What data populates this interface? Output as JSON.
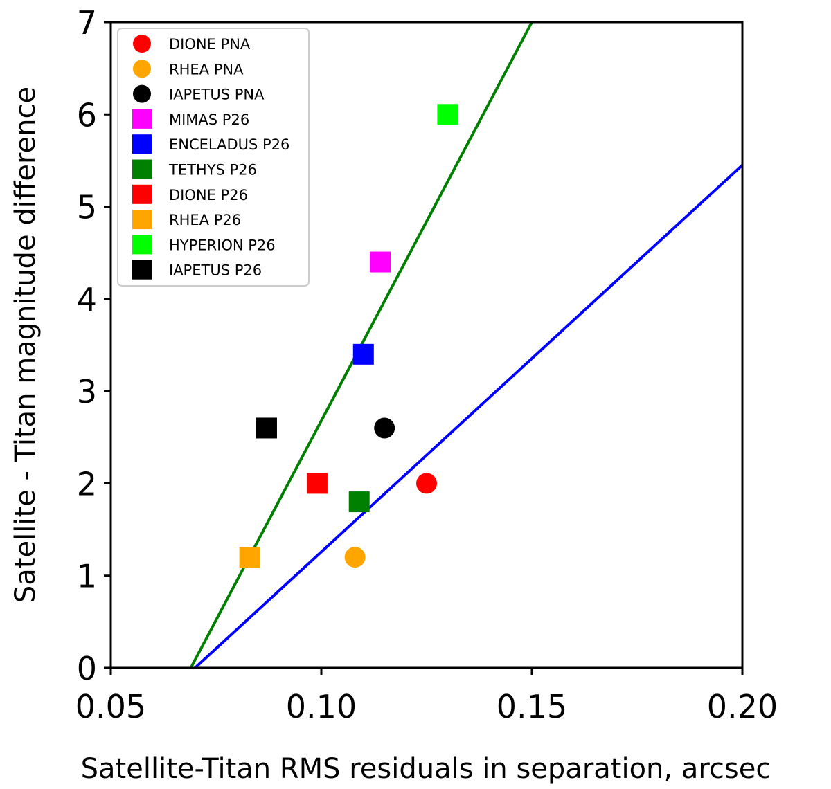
{
  "chart_data": {
    "type": "scatter",
    "xlabel": "Satellite-Titan RMS residuals in separation, arcsec",
    "ylabel": "Satellite - Titan magnitude difference",
    "xlim": [
      0.05,
      0.2
    ],
    "ylim": [
      0,
      7
    ],
    "x_ticks": [
      "0.05",
      "0.10",
      "0.15",
      "0.20"
    ],
    "y_ticks": [
      "0",
      "1",
      "2",
      "3",
      "4",
      "5",
      "6",
      "7"
    ],
    "grid": false,
    "legend_placement": "top-left",
    "series": [
      {
        "name": "DIONE PNA",
        "marker": "circle",
        "color": "#ff0000",
        "x": 0.125,
        "y": 2.0
      },
      {
        "name": "RHEA PNA",
        "marker": "circle",
        "color": "#ffa500",
        "x": 0.108,
        "y": 1.2
      },
      {
        "name": "IAPETUS PNA",
        "marker": "circle",
        "color": "#000000",
        "x": 0.115,
        "y": 2.6
      },
      {
        "name": "MIMAS P26",
        "marker": "square",
        "color": "#ff00ff",
        "x": 0.114,
        "y": 4.4
      },
      {
        "name": "ENCELADUS P26",
        "marker": "square",
        "color": "#0000ff",
        "x": 0.11,
        "y": 3.4
      },
      {
        "name": "TETHYS P26",
        "marker": "square",
        "color": "#008000",
        "x": 0.109,
        "y": 1.8
      },
      {
        "name": "DIONE P26",
        "marker": "square",
        "color": "#ff0000",
        "x": 0.099,
        "y": 2.0
      },
      {
        "name": "RHEA P26",
        "marker": "square",
        "color": "#ffa500",
        "x": 0.083,
        "y": 1.2
      },
      {
        "name": "HYPERION P26",
        "marker": "square",
        "color": "#00ff00",
        "x": 0.13,
        "y": 6.0
      },
      {
        "name": "IAPETUS P26",
        "marker": "square",
        "color": "#000000",
        "x": 0.087,
        "y": 2.6
      }
    ],
    "lines": [
      {
        "color": "#008000",
        "x": [
          0.069,
          0.15
        ],
        "y": [
          0,
          7.0
        ]
      },
      {
        "color": "#0000ff",
        "x": [
          0.07,
          0.2
        ],
        "y": [
          0,
          5.45
        ]
      }
    ]
  }
}
